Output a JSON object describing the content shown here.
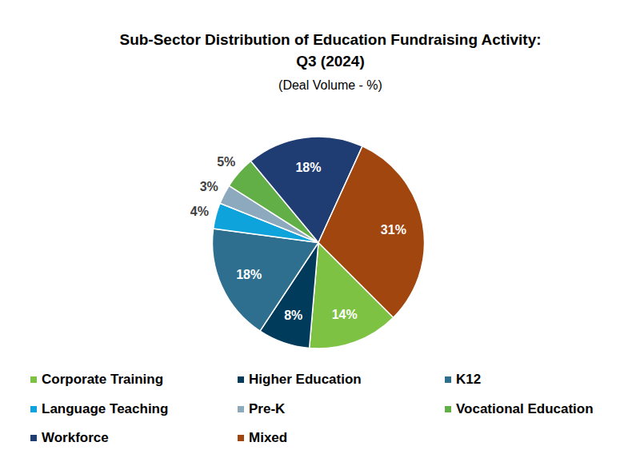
{
  "chart_data": {
    "type": "pie",
    "title": "Sub-Sector Distribution of Education Fundraising Activity:\nQ3 (2024)",
    "subtitle": "(Deal Volume - %)",
    "categories": [
      "Corporate Training",
      "Higher Education",
      "K12",
      "Language Teaching",
      "Pre-K",
      "Vocational Education",
      "Workforce",
      "Mixed"
    ],
    "values": [
      14,
      8,
      18,
      4,
      3,
      5,
      18,
      31
    ],
    "value_labels": [
      "14%",
      "8%",
      "18%",
      "4%",
      "3%",
      "5%",
      "18%",
      "31%"
    ],
    "colors": [
      "#7DC243",
      "#003B5C",
      "#2E6E8E",
      "#0FA3DC",
      "#8DA9BE",
      "#62AE47",
      "#1F3D73",
      "#A0460E"
    ],
    "data_labels": true,
    "legend": "bottom"
  }
}
